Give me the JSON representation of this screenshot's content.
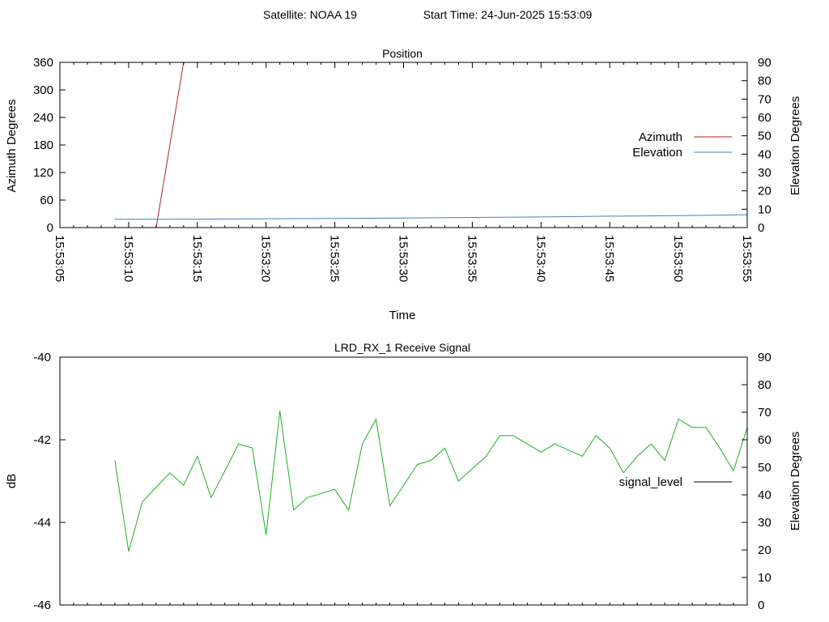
{
  "header": {
    "satellite": "Satellite: NOAA 19",
    "start_time": "Start Time: 24-Jun-2025 15:53:09"
  },
  "colors": {
    "azimuth": "#b22222",
    "elevation": "#4a7fb5",
    "signal": "#1fb01f",
    "signal_legend": "#000000"
  },
  "chart_data": [
    {
      "type": "line",
      "title": "Position",
      "xlabel": "Time",
      "ylabel": "Azimuth Degrees",
      "y2label": "Elevation Degrees",
      "x_range": [
        "15:53:05",
        "15:53:55"
      ],
      "x_ticks": [
        "15:53:05",
        "15:53:10",
        "15:53:15",
        "15:53:20",
        "15:53:25",
        "15:53:30",
        "15:53:35",
        "15:53:40",
        "15:53:45",
        "15:53:50",
        "15:53:55"
      ],
      "ylim": [
        0,
        360
      ],
      "y_ticks": [
        0,
        60,
        120,
        180,
        240,
        300,
        360
      ],
      "y2lim": [
        0,
        90
      ],
      "y2_ticks": [
        0,
        10,
        20,
        30,
        40,
        50,
        60,
        70,
        80,
        90
      ],
      "legend_position": "right",
      "series": [
        {
          "name": "Azimuth",
          "axis": "y",
          "color_key": "azimuth",
          "x": [
            "15:53:12",
            "15:53:14",
            "15:53:14",
            "15:53:55"
          ],
          "y": [
            0,
            360,
            null,
            360
          ]
        },
        {
          "name": "Elevation",
          "axis": "y2",
          "color_key": "elevation",
          "x": [
            "15:53:09",
            "15:53:15",
            "15:53:20",
            "15:53:25",
            "15:53:30",
            "15:53:35",
            "15:53:40",
            "15:53:45",
            "15:53:50",
            "15:53:55"
          ],
          "y": [
            4.5,
            4.6,
            4.8,
            5.0,
            5.2,
            5.5,
            5.8,
            6.2,
            6.5,
            7.0
          ]
        }
      ]
    },
    {
      "type": "line",
      "title": "LRD_RX_1 Receive Signal",
      "xlabel": "",
      "ylabel": "dB",
      "y2label": "Elevation Degrees",
      "x_range": [
        "15:53:05",
        "15:53:55"
      ],
      "x_minor_step_seconds": 1,
      "ylim": [
        -46,
        -40
      ],
      "y_ticks": [
        -46,
        -44,
        -42,
        -40
      ],
      "y2lim": [
        0,
        90
      ],
      "y2_ticks": [
        0,
        10,
        20,
        30,
        40,
        50,
        60,
        70,
        80,
        90
      ],
      "legend_position": "right",
      "series": [
        {
          "name": "signal_level",
          "axis": "y",
          "color_key": "signal",
          "legend_color_key": "signal_legend",
          "x": [
            "15:53:09",
            "15:53:10",
            "15:53:11",
            "15:53:12",
            "15:53:13",
            "15:53:14",
            "15:53:15",
            "15:53:16",
            "15:53:17",
            "15:53:18",
            "15:53:19",
            "15:53:20",
            "15:53:21",
            "15:53:22",
            "15:53:23",
            "15:53:24",
            "15:53:25",
            "15:53:26",
            "15:53:27",
            "15:53:28",
            "15:53:29",
            "15:53:30",
            "15:53:31",
            "15:53:32",
            "15:53:33",
            "15:53:34",
            "15:53:35",
            "15:53:36",
            "15:53:37",
            "15:53:38",
            "15:53:39",
            "15:53:40",
            "15:53:41",
            "15:53:42",
            "15:53:43",
            "15:53:44",
            "15:53:45",
            "15:53:46",
            "15:53:47",
            "15:53:48",
            "15:53:49",
            "15:53:50",
            "15:53:51",
            "15:53:52",
            "15:53:53",
            "15:53:54",
            "15:53:55"
          ],
          "y": [
            -42.5,
            -44.7,
            -43.5,
            -43.15,
            -42.8,
            -43.1,
            -42.4,
            -43.4,
            -42.75,
            -42.1,
            -42.2,
            -44.3,
            -41.3,
            -43.7,
            -43.4,
            -43.3,
            -43.2,
            -43.7,
            -42.1,
            -41.5,
            -43.6,
            -43.1,
            -42.6,
            -42.5,
            -42.2,
            -43.0,
            -42.7,
            -42.4,
            -41.9,
            -41.9,
            -42.1,
            -42.3,
            -42.1,
            -42.25,
            -42.4,
            -41.9,
            -42.2,
            -42.8,
            -42.4,
            -42.1,
            -42.5,
            -41.5,
            -41.7,
            -41.7,
            -42.2,
            -42.75,
            -41.7
          ]
        }
      ]
    }
  ]
}
